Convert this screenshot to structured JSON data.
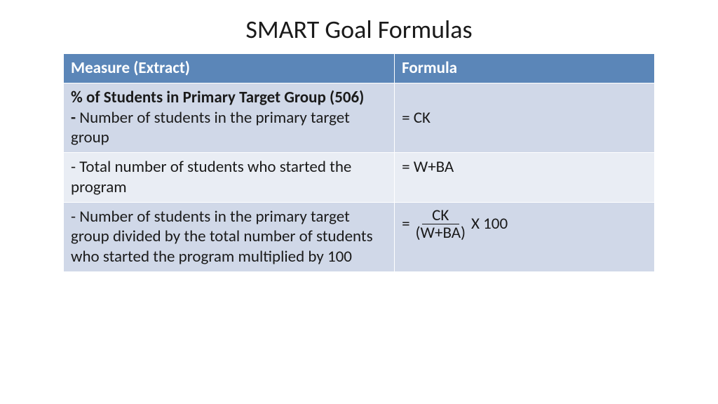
{
  "title": "SMART Goal Formulas",
  "colors": {
    "header_bg": "#5b86b8",
    "header_text": "#ffffff",
    "row_odd_bg": "#d0d8e8",
    "row_even_bg": "#e9edf4",
    "border": "#ffffff",
    "text": "#1a1a1a",
    "page_bg": "#ffffff"
  },
  "typography": {
    "title_fontsize": 36,
    "cell_fontsize": 23,
    "font_family": "Calibri"
  },
  "table": {
    "columns": [
      {
        "label": "Measure (Extract)",
        "width_pct": 56
      },
      {
        "label": "Formula",
        "width_pct": 44
      }
    ],
    "rows": [
      {
        "bg": "row-odd",
        "measure_bold": "% of Students in Primary Target Group (506)",
        "measure_rest_prefix": "- ",
        "measure_rest": "Number of students in the primary target group",
        "formula_type": "plain",
        "formula_text": "= CK"
      },
      {
        "bg": "row-even",
        "measure_bold": "",
        "measure_rest_prefix": "",
        "measure_rest": "- Total number of students who started the program",
        "formula_type": "plain",
        "formula_text": "= W+BA"
      },
      {
        "bg": "row-odd",
        "measure_bold": "",
        "measure_rest_prefix": "",
        "measure_rest": "- Number of students in the primary target group divided by the total number of students who started the program multiplied by 100",
        "formula_type": "fraction",
        "formula_eq": "=",
        "formula_num": "CK",
        "formula_den": "(W+BA)",
        "formula_suffix": "X 100"
      }
    ]
  }
}
